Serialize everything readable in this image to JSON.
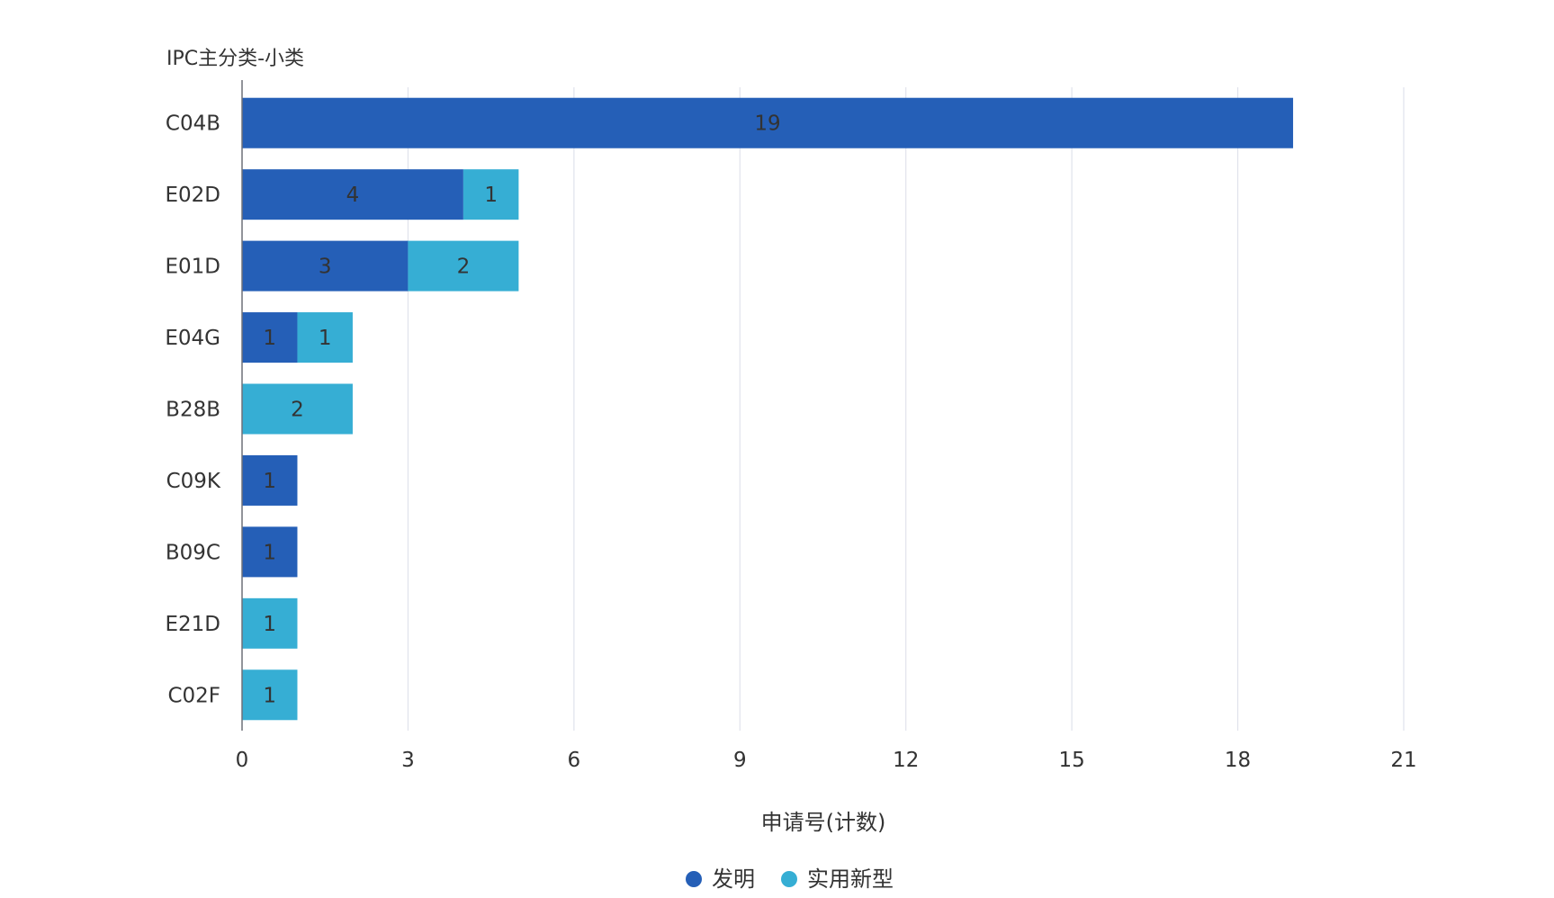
{
  "chart_data": {
    "type": "bar",
    "orientation": "horizontal",
    "stacked": true,
    "title": "",
    "ylabel": "IPC主分类-小类",
    "xlabel": "申请号(计数)",
    "categories": [
      "C04B",
      "E02D",
      "E01D",
      "E04G",
      "B28B",
      "C09K",
      "B09C",
      "E21D",
      "C02F"
    ],
    "series": [
      {
        "name": "发明",
        "color": "#255FB7",
        "values": [
          19,
          4,
          3,
          1,
          0,
          1,
          1,
          0,
          0
        ]
      },
      {
        "name": "实用新型",
        "color": "#36AED4",
        "values": [
          0,
          1,
          2,
          1,
          2,
          0,
          0,
          1,
          1
        ]
      }
    ],
    "xlim": [
      0,
      21
    ],
    "xticks": [
      0,
      3,
      6,
      9,
      12,
      15,
      18,
      21
    ],
    "grid": true,
    "legend_position": "bottom"
  }
}
